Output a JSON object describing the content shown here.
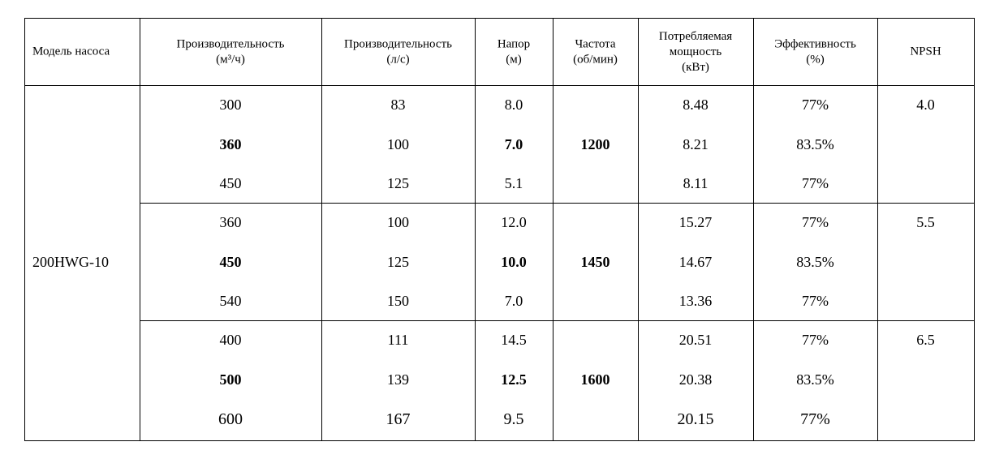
{
  "table": {
    "header": [
      "Модель насоса",
      "Производительность\n(м³/ч)",
      "Производительность\n(л/с)",
      "Напор\n(м)",
      "Частота\n(об/мин)",
      "Потребляемая\nмощность\n(кВт)",
      "Эффективность\n(%)",
      "NPSH"
    ],
    "model": "200HWG-10",
    "groups": [
      {
        "speed": "1200",
        "npsh": "4.0",
        "rows": [
          [
            "300",
            "83",
            "8.0",
            "8.48",
            "77%"
          ],
          [
            "360",
            "100",
            "7.0",
            "8.21",
            "83.5%"
          ],
          [
            "450",
            "125",
            "5.1",
            "8.11",
            "77%"
          ]
        ]
      },
      {
        "speed": "1450",
        "npsh": "5.5",
        "rows": [
          [
            "360",
            "100",
            "12.0",
            "15.27",
            "77%"
          ],
          [
            "450",
            "125",
            "10.0",
            "14.67",
            "83.5%"
          ],
          [
            "540",
            "150",
            "7.0",
            "13.36",
            "77%"
          ]
        ]
      },
      {
        "speed": "1600",
        "npsh": "6.5",
        "rows": [
          [
            "400",
            "111",
            "14.5",
            "20.51",
            "77%"
          ],
          [
            "500",
            "139",
            "12.5",
            "20.38",
            "83.5%"
          ],
          [
            "600",
            "167",
            "9.5",
            "20.15",
            "77%"
          ]
        ]
      }
    ]
  }
}
